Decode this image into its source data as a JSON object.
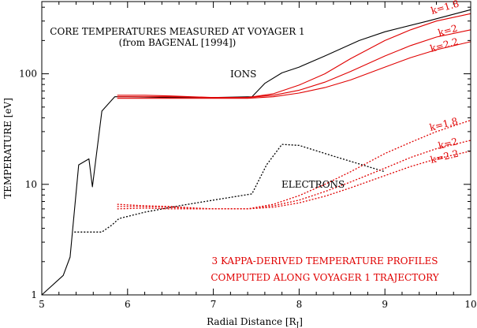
{
  "chart_data": {
    "type": "line",
    "title": "CORE TEMPERATURES MEASURED AT VOYAGER 1",
    "subtitle": "(from BAGENAL [1994])",
    "xlabel": "Radial Distance [R",
    "xlabel_sub": "J",
    "xlabel_close": "]",
    "ylabel": "TEMPERATURE [eV]",
    "xlim": [
      5,
      10
    ],
    "ylim": [
      1,
      450
    ],
    "yscale": "log",
    "x_ticks": [
      5,
      6,
      7,
      8,
      9,
      10
    ],
    "x_tick_labels": [
      "5",
      "6",
      "7",
      "8",
      "9",
      "10"
    ],
    "y_ticks": [
      1,
      10,
      100
    ],
    "y_tick_labels": [
      "1",
      "10",
      "100"
    ],
    "grid": false,
    "colors": {
      "measured": "#000000",
      "model": "#e00000"
    },
    "annotations": {
      "ions": "IONS",
      "electrons": "ELECTRONS",
      "note_line1": "3 KAPPA-DERIVED TEMPERATURE PROFILES",
      "note_line2": "COMPUTED ALONG VOYAGER 1 TRAJECTORY",
      "ion_k18": "k=1.8",
      "ion_k2": "k=2",
      "ion_k22": "k=2.2",
      "el_k18": "k=1.8",
      "el_k2": "k=2",
      "el_k22": "k=2.2"
    },
    "series": [
      {
        "group": "ions-measured",
        "color": "#000000",
        "dash": "solid",
        "x": [
          5.0,
          5.25,
          5.33,
          5.43,
          5.55,
          5.59,
          5.7,
          5.85,
          6.0,
          6.5,
          7.0,
          7.45,
          7.6,
          7.8,
          8.0,
          8.3,
          8.7,
          9.0,
          9.5,
          10.0
        ],
        "y": [
          1.0,
          1.5,
          2.2,
          15,
          17,
          9.5,
          46,
          62,
          62,
          61,
          61,
          62,
          82,
          102,
          115,
          145,
          200,
          240,
          300,
          380
        ]
      },
      {
        "group": "electrons-measured",
        "color": "#000000",
        "dash": "dotted",
        "x": [
          5.38,
          5.7,
          5.82,
          5.9,
          6.2,
          6.6,
          7.0,
          7.45,
          7.62,
          7.8,
          8.0,
          8.4,
          9.0
        ],
        "y": [
          3.7,
          3.7,
          4.3,
          4.9,
          5.6,
          6.4,
          7.2,
          8.2,
          15,
          23,
          22.5,
          18,
          13
        ]
      },
      {
        "group": "ions-model",
        "color": "#e00000",
        "dash": "solid",
        "x": [
          5.88,
          6.2,
          6.5,
          7.0,
          7.4,
          7.7,
          8.0,
          8.3,
          8.6,
          9.0,
          9.3,
          9.6,
          10.0
        ],
        "y": [
          64,
          64,
          63,
          61,
          61,
          66,
          79,
          100,
          137,
          200,
          250,
          300,
          350
        ]
      },
      {
        "group": "ions-model",
        "color": "#e00000",
        "dash": "solid",
        "x": [
          5.88,
          6.2,
          6.5,
          7.0,
          7.4,
          7.7,
          8.0,
          8.3,
          8.6,
          9.0,
          9.3,
          9.6,
          10.0
        ],
        "y": [
          62,
          62,
          62,
          61,
          61,
          64,
          71,
          84,
          105,
          145,
          180,
          215,
          250
        ]
      },
      {
        "group": "ions-model",
        "color": "#e00000",
        "dash": "solid",
        "x": [
          5.88,
          6.2,
          6.5,
          7.0,
          7.4,
          7.7,
          8.0,
          8.3,
          8.6,
          9.0,
          9.3,
          9.6,
          10.0
        ],
        "y": [
          60,
          60,
          60,
          60,
          60,
          62,
          67,
          75,
          88,
          115,
          140,
          165,
          195
        ]
      },
      {
        "group": "electrons-model",
        "color": "#e00000",
        "dash": "dotted",
        "x": [
          5.88,
          6.2,
          6.5,
          6.8,
          7.0,
          7.4,
          7.7,
          8.0,
          8.3,
          8.6,
          9.0,
          9.3,
          9.6,
          10.0
        ],
        "y": [
          6.6,
          6.4,
          6.3,
          6.1,
          6.0,
          6.0,
          6.6,
          7.9,
          10,
          13,
          19,
          24,
          30,
          38
        ]
      },
      {
        "group": "electrons-model",
        "color": "#e00000",
        "dash": "dotted",
        "x": [
          5.88,
          6.2,
          6.5,
          6.8,
          7.0,
          7.4,
          7.7,
          8.0,
          8.3,
          8.6,
          9.0,
          9.3,
          9.6,
          10.0
        ],
        "y": [
          6.3,
          6.3,
          6.2,
          6.0,
          6.0,
          6.0,
          6.4,
          7.2,
          8.6,
          10.5,
          14,
          17.5,
          21,
          25
        ]
      },
      {
        "group": "electrons-model",
        "color": "#e00000",
        "dash": "dotted",
        "x": [
          5.88,
          6.2,
          6.5,
          6.8,
          7.0,
          7.4,
          7.7,
          8.0,
          8.3,
          8.6,
          9.0,
          9.3,
          9.6,
          10.0
        ],
        "y": [
          6.0,
          6.1,
          6.0,
          6.0,
          6.0,
          6.0,
          6.2,
          6.8,
          7.8,
          9.3,
          12,
          14.5,
          17,
          20
        ]
      }
    ]
  }
}
